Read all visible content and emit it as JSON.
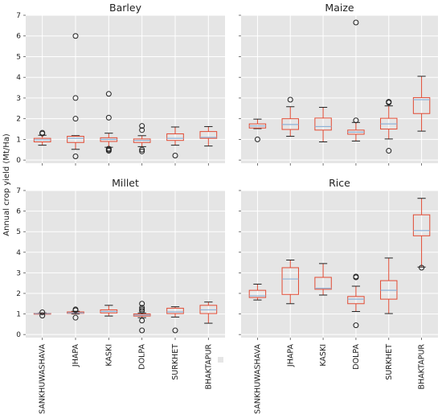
{
  "chart_data": {
    "type": "box",
    "ylabel": "Annual crop yield (Mt/Ha)",
    "ylim": [
      -0.15,
      7
    ],
    "yticks": [
      0,
      1,
      2,
      3,
      4,
      5,
      6,
      7
    ],
    "sharex": true,
    "sharey": true,
    "grid": true,
    "background": "#e5e5e5",
    "colors": {
      "box": "#e24a33",
      "median": "#8eb2d6",
      "whisker": "#222222",
      "outlier": "#222222"
    },
    "categories": [
      "SANKHUWASHAVA",
      "JHAPA",
      "KASKI",
      "DOLPA",
      "SURKHET",
      "BHAKTAPUR"
    ],
    "panels": [
      {
        "title": "Barley",
        "boxes": [
          {
            "whislo": 0.72,
            "q1": 0.88,
            "med": 0.98,
            "q3": 1.05,
            "whishi": 1.2,
            "fliers": [
              1.28,
              1.32
            ]
          },
          {
            "whislo": 0.52,
            "q1": 0.85,
            "med": 1.05,
            "q3": 1.15,
            "whishi": 1.18,
            "fliers": [
              0.18,
              2.0,
              3.0,
              6.0
            ]
          },
          {
            "whislo": 0.62,
            "q1": 0.9,
            "med": 1.0,
            "q3": 1.08,
            "whishi": 1.3,
            "fliers": [
              0.45,
              0.5,
              0.55,
              2.05,
              3.2
            ]
          },
          {
            "whislo": 0.65,
            "q1": 0.85,
            "med": 0.95,
            "q3": 1.02,
            "whishi": 1.18,
            "fliers": [
              0.42,
              0.5,
              1.45,
              1.65
            ]
          },
          {
            "whislo": 0.72,
            "q1": 0.95,
            "med": 1.05,
            "q3": 1.27,
            "whishi": 1.6,
            "fliers": [
              0.22
            ]
          },
          {
            "whislo": 0.68,
            "q1": 1.05,
            "med": 1.1,
            "q3": 1.38,
            "whishi": 1.62,
            "fliers": []
          }
        ]
      },
      {
        "title": "Maize",
        "boxes": [
          {
            "whislo": 1.52,
            "q1": 1.55,
            "med": 1.65,
            "q3": 1.75,
            "whishi": 1.98,
            "fliers": [
              1.0
            ]
          },
          {
            "whislo": 1.15,
            "q1": 1.48,
            "med": 1.72,
            "q3": 2.0,
            "whishi": 2.58,
            "fliers": [
              2.92
            ]
          },
          {
            "whislo": 0.88,
            "q1": 1.45,
            "med": 1.62,
            "q3": 2.03,
            "whishi": 2.55,
            "fliers": []
          },
          {
            "whislo": 0.92,
            "q1": 1.25,
            "med": 1.35,
            "q3": 1.45,
            "whishi": 1.82,
            "fliers": [
              1.92,
              6.65
            ]
          },
          {
            "whislo": 1.02,
            "q1": 1.5,
            "med": 1.75,
            "q3": 2.02,
            "whishi": 2.62,
            "fliers": [
              0.45,
              2.78,
              2.82
            ]
          },
          {
            "whislo": 1.4,
            "q1": 2.25,
            "med": 2.92,
            "q3": 3.02,
            "whishi": 4.05,
            "fliers": []
          }
        ]
      },
      {
        "title": "Millet",
        "boxes": [
          {
            "whislo": 1.0,
            "q1": 1.0,
            "med": 1.02,
            "q3": 1.03,
            "whishi": 1.05,
            "fliers": [
              0.92,
              1.08
            ]
          },
          {
            "whislo": 1.0,
            "q1": 1.03,
            "med": 1.05,
            "q3": 1.1,
            "whishi": 1.13,
            "fliers": [
              0.82,
              1.18,
              1.22
            ]
          },
          {
            "whislo": 0.9,
            "q1": 1.05,
            "med": 1.12,
            "q3": 1.2,
            "whishi": 1.42,
            "fliers": []
          },
          {
            "whislo": 0.82,
            "q1": 0.9,
            "med": 0.95,
            "q3": 1.0,
            "whishi": 1.05,
            "fliers": [
              0.2,
              0.68,
              1.15,
              1.22,
              1.3,
              1.5
            ]
          },
          {
            "whislo": 0.85,
            "q1": 1.02,
            "med": 1.1,
            "q3": 1.28,
            "whishi": 1.35,
            "fliers": [
              0.2
            ]
          },
          {
            "whislo": 0.55,
            "q1": 1.02,
            "med": 1.2,
            "q3": 1.42,
            "whishi": 1.58,
            "fliers": []
          }
        ]
      },
      {
        "title": "Rice",
        "boxes": [
          {
            "whislo": 1.68,
            "q1": 1.8,
            "med": 1.88,
            "q3": 2.15,
            "whishi": 2.45,
            "fliers": []
          },
          {
            "whislo": 1.5,
            "q1": 1.95,
            "med": 2.7,
            "q3": 3.25,
            "whishi": 3.62,
            "fliers": []
          },
          {
            "whislo": 1.92,
            "q1": 2.2,
            "med": 2.25,
            "q3": 2.78,
            "whishi": 3.45,
            "fliers": []
          },
          {
            "whislo": 1.12,
            "q1": 1.5,
            "med": 1.72,
            "q3": 1.85,
            "whishi": 2.35,
            "fliers": [
              0.45,
              2.78,
              2.82
            ]
          },
          {
            "whislo": 1.02,
            "q1": 1.72,
            "med": 2.15,
            "q3": 2.62,
            "whishi": 3.72,
            "fliers": []
          },
          {
            "whislo": 3.28,
            "q1": 4.8,
            "med": 5.05,
            "q3": 5.82,
            "whishi": 6.62,
            "fliers": [
              3.25
            ]
          }
        ]
      }
    ]
  }
}
